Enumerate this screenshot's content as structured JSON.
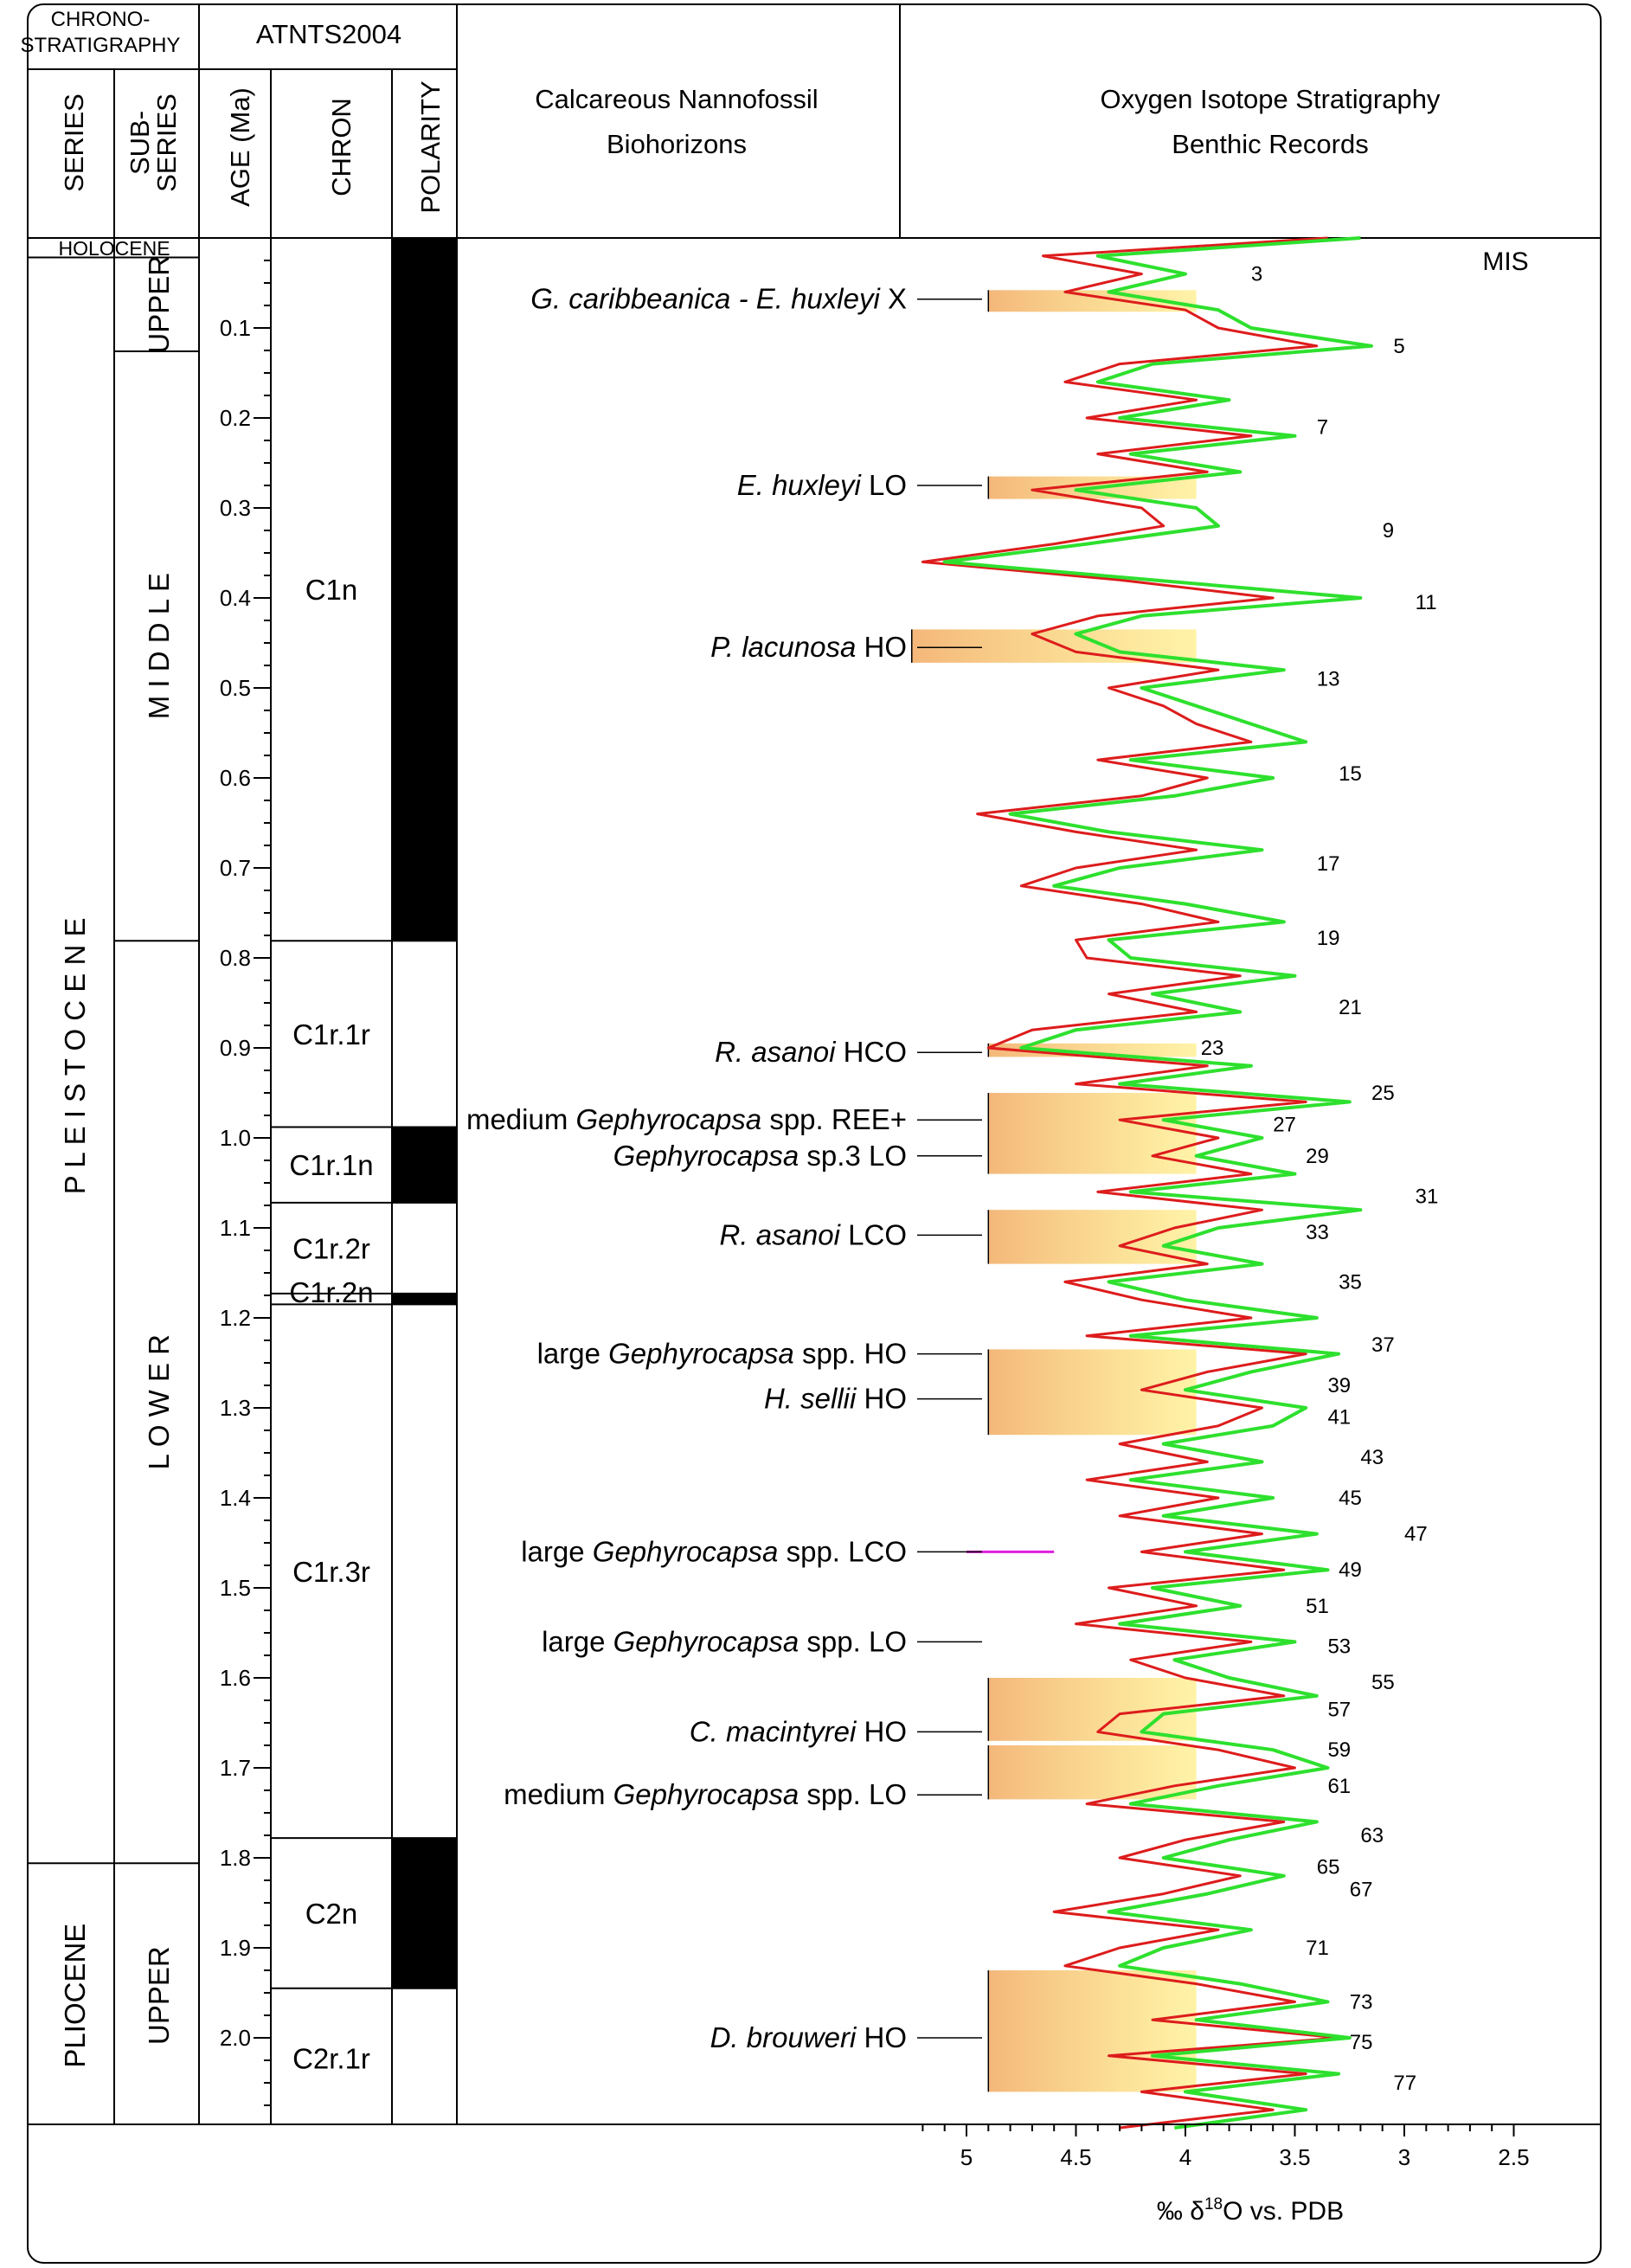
{
  "header": {
    "chronostratigraphy_l1": "CHRONO-",
    "chronostratigraphy_l2": "STRATIGRAPHY",
    "atnts": "ATNTS2004",
    "series": "SERIES",
    "subseries_l1": "SUB-",
    "subseries_l2": "SERIES",
    "age": "AGE (Ma)",
    "chron": "CHRON",
    "polarity": "POLARITY",
    "nanno_l1": "Calcareous Nannofossil",
    "nanno_l2": "Biohorizons",
    "isotope_l1": "Oxygen Isotope Stratigraphy",
    "isotope_l2": "Benthic Records"
  },
  "series": [
    {
      "label": "HOLOCENE",
      "top": 0.0,
      "bottom": 0.012
    },
    {
      "label": "P L E I S T O C E N E",
      "top": 0.012,
      "bottom": 1.806
    },
    {
      "label": "PLIOCENE",
      "top": 1.806,
      "bottom": 2.1
    }
  ],
  "subseries": [
    {
      "label": "UPPER",
      "top": 0.012,
      "bottom": 0.126
    },
    {
      "label": "M I D D L E",
      "top": 0.126,
      "bottom": 0.781
    },
    {
      "label": "L O W E R",
      "top": 0.781,
      "bottom": 1.806
    },
    {
      "label": "UPPER",
      "top": 1.806,
      "bottom": 2.1
    }
  ],
  "age_axis": {
    "range": [
      0.0,
      2.1
    ],
    "major_ticks": [
      "0.1",
      "0.2",
      "0.3",
      "0.4",
      "0.5",
      "0.6",
      "0.7",
      "0.8",
      "0.9",
      "1.0",
      "1.1",
      "1.2",
      "1.3",
      "1.4",
      "1.5",
      "1.6",
      "1.7",
      "1.8",
      "1.9",
      "2.0"
    ],
    "minor_step": 0.025
  },
  "chrons": [
    {
      "label": "C1n",
      "top": 0.0,
      "bottom": 0.781,
      "polarity": "normal"
    },
    {
      "label": "C1r.1r",
      "top": 0.781,
      "bottom": 0.988,
      "polarity": "reversed"
    },
    {
      "label": "C1r.1n",
      "top": 0.988,
      "bottom": 1.072,
      "polarity": "normal"
    },
    {
      "label": "C1r.2r",
      "top": 1.072,
      "bottom": 1.173,
      "polarity": "reversed"
    },
    {
      "label": "C1r.2n",
      "top": 1.173,
      "bottom": 1.185,
      "polarity": "normal"
    },
    {
      "label": "C1r.3r",
      "top": 1.185,
      "bottom": 1.778,
      "polarity": "reversed"
    },
    {
      "label": "C2n",
      "top": 1.778,
      "bottom": 1.945,
      "polarity": "normal"
    },
    {
      "label": "C2r.1r",
      "top": 1.945,
      "bottom": 2.1,
      "polarity": "reversed"
    }
  ],
  "biohorizons": [
    {
      "italic": "G. caribbeanica - E. huxleyi",
      "plain": " X",
      "age": 0.068
    },
    {
      "italic": "E. huxleyi",
      "plain": " LO",
      "age": 0.275
    },
    {
      "italic": "P. lacunosa",
      "plain": " HO",
      "age": 0.455
    },
    {
      "italic": "R. asanoi",
      "plain": " HCO",
      "age": 0.905
    },
    {
      "pre": "medium ",
      "italic": "Gephyrocapsa",
      "plain": " spp. REE+",
      "age": 0.98
    },
    {
      "italic": "Gephyrocapsa",
      "plain": " sp.3 LO",
      "age": 1.02
    },
    {
      "italic": "R. asanoi",
      "plain": " LCO",
      "age": 1.108
    },
    {
      "pre": "large ",
      "italic": "Gephyrocapsa",
      "plain": " spp. HO",
      "age": 1.24
    },
    {
      "italic": "H. sellii",
      "plain": " HO",
      "age": 1.29
    },
    {
      "pre": "large ",
      "italic": "Gephyrocapsa",
      "plain": " spp. LCO",
      "age": 1.46
    },
    {
      "pre": "large ",
      "italic": "Gephyrocapsa",
      "plain": " spp. LO",
      "age": 1.56
    },
    {
      "italic": "C. macintyrei",
      "plain": " HO",
      "age": 1.66
    },
    {
      "pre": "medium ",
      "italic": "Gephyrocapsa",
      "plain": " spp. LO",
      "age": 1.73
    },
    {
      "italic": "D. brouweri",
      "plain": " HO",
      "age": 2.0
    }
  ],
  "highlight_bands": [
    {
      "top": 0.058,
      "bottom": 0.082,
      "d18o_edge": 4.9
    },
    {
      "top": 0.265,
      "bottom": 0.29,
      "d18o_edge": 4.9
    },
    {
      "top": 0.435,
      "bottom": 0.472,
      "d18o_edge": 5.25
    },
    {
      "top": 0.895,
      "bottom": 0.91,
      "d18o_edge": 4.9
    },
    {
      "top": 0.95,
      "bottom": 1.04,
      "d18o_edge": 4.9
    },
    {
      "top": 1.08,
      "bottom": 1.14,
      "d18o_edge": 4.9
    },
    {
      "top": 1.235,
      "bottom": 1.33,
      "d18o_edge": 4.9
    },
    {
      "top": 1.6,
      "bottom": 1.67,
      "d18o_edge": 4.9
    },
    {
      "top": 1.675,
      "bottom": 1.735,
      "d18o_edge": 4.9
    },
    {
      "top": 1.925,
      "bottom": 2.06,
      "d18o_edge": 4.9
    }
  ],
  "lco_line": {
    "age": 1.46,
    "from": 5.0,
    "to": 4.6,
    "color": "#e020e0"
  },
  "mis": {
    "title": "MIS",
    "labels": [
      {
        "n": "3",
        "age": 0.04,
        "d18o": 3.7
      },
      {
        "n": "5",
        "age": 0.12,
        "d18o": 3.05
      },
      {
        "n": "7",
        "age": 0.21,
        "d18o": 3.4
      },
      {
        "n": "9",
        "age": 0.325,
        "d18o": 3.1
      },
      {
        "n": "11",
        "age": 0.405,
        "d18o": 2.95
      },
      {
        "n": "13",
        "age": 0.49,
        "d18o": 3.4
      },
      {
        "n": "15",
        "age": 0.595,
        "d18o": 3.3
      },
      {
        "n": "17",
        "age": 0.695,
        "d18o": 3.4
      },
      {
        "n": "19",
        "age": 0.778,
        "d18o": 3.4
      },
      {
        "n": "21",
        "age": 0.855,
        "d18o": 3.3
      },
      {
        "n": "23",
        "age": 0.9,
        "d18o": 3.93
      },
      {
        "n": "25",
        "age": 0.95,
        "d18o": 3.15
      },
      {
        "n": "27",
        "age": 0.985,
        "d18o": 3.6
      },
      {
        "n": "29",
        "age": 1.02,
        "d18o": 3.45
      },
      {
        "n": "31",
        "age": 1.065,
        "d18o": 2.95
      },
      {
        "n": "33",
        "age": 1.105,
        "d18o": 3.45
      },
      {
        "n": "35",
        "age": 1.16,
        "d18o": 3.3
      },
      {
        "n": "37",
        "age": 1.23,
        "d18o": 3.15
      },
      {
        "n": "39",
        "age": 1.275,
        "d18o": 3.35
      },
      {
        "n": "41",
        "age": 1.31,
        "d18o": 3.35
      },
      {
        "n": "43",
        "age": 1.355,
        "d18o": 3.2
      },
      {
        "n": "45",
        "age": 1.4,
        "d18o": 3.3
      },
      {
        "n": "47",
        "age": 1.44,
        "d18o": 3.0
      },
      {
        "n": "49",
        "age": 1.48,
        "d18o": 3.3
      },
      {
        "n": "51",
        "age": 1.52,
        "d18o": 3.45
      },
      {
        "n": "53",
        "age": 1.565,
        "d18o": 3.35
      },
      {
        "n": "55",
        "age": 1.605,
        "d18o": 3.15
      },
      {
        "n": "57",
        "age": 1.635,
        "d18o": 3.35
      },
      {
        "n": "59",
        "age": 1.68,
        "d18o": 3.35
      },
      {
        "n": "61",
        "age": 1.72,
        "d18o": 3.35
      },
      {
        "n": "63",
        "age": 1.775,
        "d18o": 3.2
      },
      {
        "n": "65",
        "age": 1.81,
        "d18o": 3.4
      },
      {
        "n": "67",
        "age": 1.835,
        "d18o": 3.25
      },
      {
        "n": "71",
        "age": 1.9,
        "d18o": 3.45
      },
      {
        "n": "73",
        "age": 1.96,
        "d18o": 3.25
      },
      {
        "n": "75",
        "age": 2.005,
        "d18o": 3.25
      },
      {
        "n": "77",
        "age": 2.05,
        "d18o": 3.05
      }
    ]
  },
  "isotope_axis": {
    "range": [
      5.3,
      2.5
    ],
    "ticks": [
      "5",
      "4.5",
      "4",
      "3.5",
      "3",
      "2.5"
    ],
    "label_pre": "‰ δ",
    "label_sup": "18",
    "label_post": "O  vs. PDB"
  },
  "chart_data": {
    "type": "line",
    "title": "Oxygen Isotope Stratigraphy Benthic Records",
    "xlabel": "‰ δ18O vs. PDB",
    "ylabel": "AGE (Ma)",
    "xlim": [
      5.3,
      2.5
    ],
    "ylim": [
      0.0,
      2.1
    ],
    "series": [
      {
        "color": "#dd1c1c",
        "age": [
          0.0,
          0.02,
          0.04,
          0.06,
          0.08,
          0.1,
          0.12,
          0.14,
          0.16,
          0.18,
          0.2,
          0.22,
          0.24,
          0.26,
          0.28,
          0.3,
          0.32,
          0.34,
          0.36,
          0.38,
          0.4,
          0.42,
          0.44,
          0.46,
          0.48,
          0.5,
          0.52,
          0.54,
          0.56,
          0.58,
          0.6,
          0.62,
          0.64,
          0.66,
          0.68,
          0.7,
          0.72,
          0.74,
          0.76,
          0.78,
          0.8,
          0.82,
          0.84,
          0.86,
          0.88,
          0.9,
          0.92,
          0.94,
          0.96,
          0.98,
          1.0,
          1.02,
          1.04,
          1.06,
          1.08,
          1.1,
          1.12,
          1.14,
          1.16,
          1.18,
          1.2,
          1.22,
          1.24,
          1.26,
          1.28,
          1.3,
          1.32,
          1.34,
          1.36,
          1.38,
          1.4,
          1.42,
          1.44,
          1.46,
          1.48,
          1.5,
          1.52,
          1.54,
          1.56,
          1.58,
          1.6,
          1.62,
          1.64,
          1.66,
          1.68,
          1.7,
          1.72,
          1.74,
          1.76,
          1.78,
          1.8,
          1.82,
          1.84,
          1.86,
          1.88,
          1.9,
          1.92,
          1.94,
          1.96,
          1.98,
          2.0,
          2.02,
          2.04,
          2.06,
          2.08,
          2.1
        ],
        "d18o": [
          3.35,
          4.65,
          4.2,
          4.55,
          4.0,
          3.85,
          3.4,
          4.3,
          4.55,
          3.95,
          4.45,
          3.7,
          4.4,
          3.9,
          4.7,
          4.2,
          4.1,
          4.6,
          5.2,
          4.3,
          3.6,
          4.4,
          4.7,
          4.5,
          3.85,
          4.35,
          4.1,
          3.95,
          3.7,
          4.4,
          3.9,
          4.2,
          4.95,
          4.5,
          3.95,
          4.5,
          4.75,
          4.2,
          3.85,
          4.5,
          4.45,
          3.75,
          4.35,
          3.95,
          4.7,
          4.9,
          3.9,
          4.5,
          3.45,
          4.3,
          3.85,
          4.15,
          3.7,
          4.4,
          3.65,
          4.05,
          4.3,
          3.9,
          4.55,
          4.2,
          3.7,
          4.45,
          3.45,
          3.9,
          4.2,
          3.65,
          3.85,
          4.3,
          3.9,
          4.45,
          3.85,
          4.3,
          3.65,
          4.2,
          3.55,
          4.35,
          3.95,
          4.5,
          3.7,
          4.25,
          4.0,
          3.55,
          4.3,
          4.4,
          3.85,
          3.5,
          4.05,
          4.45,
          3.55,
          4.0,
          4.3,
          3.75,
          4.1,
          4.6,
          3.85,
          4.3,
          4.55,
          3.95,
          3.5,
          4.15,
          3.3,
          4.35,
          3.45,
          4.2,
          3.6,
          4.3
        ]
      },
      {
        "color": "#2ee02e",
        "age": [
          0.0,
          0.02,
          0.04,
          0.06,
          0.08,
          0.1,
          0.12,
          0.14,
          0.16,
          0.18,
          0.2,
          0.22,
          0.24,
          0.26,
          0.28,
          0.3,
          0.32,
          0.34,
          0.36,
          0.38,
          0.4,
          0.42,
          0.44,
          0.46,
          0.48,
          0.5,
          0.52,
          0.54,
          0.56,
          0.58,
          0.6,
          0.62,
          0.64,
          0.66,
          0.68,
          0.7,
          0.72,
          0.74,
          0.76,
          0.78,
          0.8,
          0.82,
          0.84,
          0.86,
          0.88,
          0.9,
          0.92,
          0.94,
          0.96,
          0.98,
          1.0,
          1.02,
          1.04,
          1.06,
          1.08,
          1.1,
          1.12,
          1.14,
          1.16,
          1.18,
          1.2,
          1.22,
          1.24,
          1.26,
          1.28,
          1.3,
          1.32,
          1.34,
          1.36,
          1.38,
          1.4,
          1.42,
          1.44,
          1.46,
          1.48,
          1.5,
          1.52,
          1.54,
          1.56,
          1.58,
          1.6,
          1.62,
          1.64,
          1.66,
          1.68,
          1.7,
          1.72,
          1.74,
          1.76,
          1.78,
          1.8,
          1.82,
          1.84,
          1.86,
          1.88,
          1.9,
          1.92,
          1.94,
          1.96,
          1.98,
          2.0,
          2.02,
          2.04,
          2.06,
          2.08,
          2.1
        ],
        "d18o": [
          3.2,
          4.4,
          4.0,
          4.35,
          3.85,
          3.7,
          3.15,
          4.15,
          4.4,
          3.8,
          4.3,
          3.5,
          4.25,
          3.75,
          4.5,
          3.95,
          3.85,
          4.45,
          5.1,
          4.15,
          3.2,
          4.2,
          4.5,
          4.3,
          3.55,
          4.2,
          3.95,
          3.7,
          3.45,
          4.25,
          3.6,
          4.05,
          4.8,
          4.35,
          3.65,
          4.3,
          4.6,
          4.0,
          3.55,
          4.35,
          4.25,
          3.5,
          4.15,
          3.75,
          4.5,
          4.75,
          3.7,
          4.3,
          3.25,
          4.1,
          3.65,
          3.95,
          3.5,
          4.25,
          3.2,
          3.85,
          4.1,
          3.65,
          4.35,
          4.0,
          3.4,
          4.25,
          3.3,
          3.7,
          4.0,
          3.45,
          3.6,
          4.1,
          3.65,
          4.25,
          3.6,
          4.1,
          3.4,
          4.0,
          3.35,
          4.15,
          3.75,
          4.3,
          3.5,
          4.05,
          3.8,
          3.4,
          4.1,
          4.2,
          3.6,
          3.35,
          3.85,
          4.25,
          3.4,
          3.8,
          4.1,
          3.55,
          3.9,
          4.35,
          3.7,
          4.1,
          4.3,
          3.75,
          3.35,
          3.95,
          3.25,
          4.15,
          3.3,
          4.0,
          3.45,
          4.05
        ]
      }
    ]
  }
}
